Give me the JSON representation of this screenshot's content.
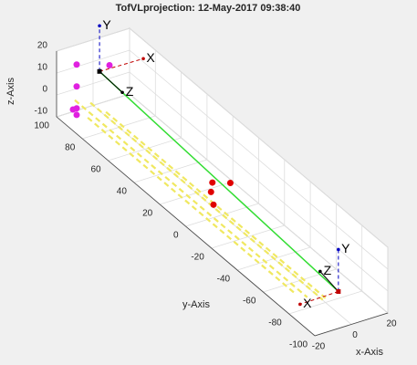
{
  "chart_data": {
    "type": "scatter3d",
    "title": "TofVLprojection: 12-May-2017 09:38:40",
    "xlabel": "x-Axis",
    "ylabel": "y-Axis",
    "zlabel": "z-Axis",
    "xlim": [
      -20,
      20
    ],
    "ylim": [
      -100,
      100
    ],
    "zlim": [
      -10,
      20
    ],
    "xticks": [
      -20,
      0,
      20
    ],
    "yticks": [
      -100,
      -80,
      -60,
      -40,
      -20,
      0,
      20,
      40,
      60,
      80,
      100
    ],
    "zticks": [
      -10,
      0,
      10,
      20
    ],
    "grid": true,
    "series": [
      {
        "mode": "scatter",
        "color": "#e00000",
        "x": [
          1,
          8,
          -4,
          -9
        ],
        "y": [
          9,
          5,
          3,
          -6
        ],
        "z": [
          0,
          0,
          0,
          0
        ]
      },
      {
        "mode": "scatter",
        "color": "#e020e0",
        "x": [
          -9,
          -9,
          -9,
          9,
          -11,
          -9
        ],
        "y": [
          100,
          100,
          100,
          100,
          100,
          100
        ],
        "z": [
          11,
          1,
          -9,
          6,
          -9,
          -12
        ]
      },
      {
        "mode": "line",
        "color": "#33dd33",
        "x": [
          0,
          0
        ],
        "y": [
          95,
          -90
        ],
        "z": [
          8,
          0
        ]
      },
      {
        "mode": "dashed",
        "color": "#f0e860",
        "x": [
          -10,
          -10
        ],
        "y": [
          100,
          -80
        ],
        "z": [
          -5,
          -5
        ]
      },
      {
        "mode": "dashed",
        "color": "#f0e860",
        "x": [
          -5,
          -5
        ],
        "y": [
          95,
          -85
        ],
        "z": [
          -5,
          -5
        ]
      },
      {
        "mode": "dashed",
        "color": "#f0e860",
        "x": [
          -10,
          -10
        ],
        "y": [
          90,
          -70
        ],
        "z": [
          -8,
          -8
        ]
      },
      {
        "mode": "dashed",
        "color": "#f0e860",
        "x": [
          0,
          0
        ],
        "y": [
          90,
          -80
        ],
        "z": [
          -8,
          -8
        ]
      }
    ],
    "frames": [
      {
        "labels": [
          "X",
          "Y",
          "Z"
        ]
      },
      {
        "labels": [
          "X",
          "Y",
          "Z"
        ]
      }
    ]
  }
}
